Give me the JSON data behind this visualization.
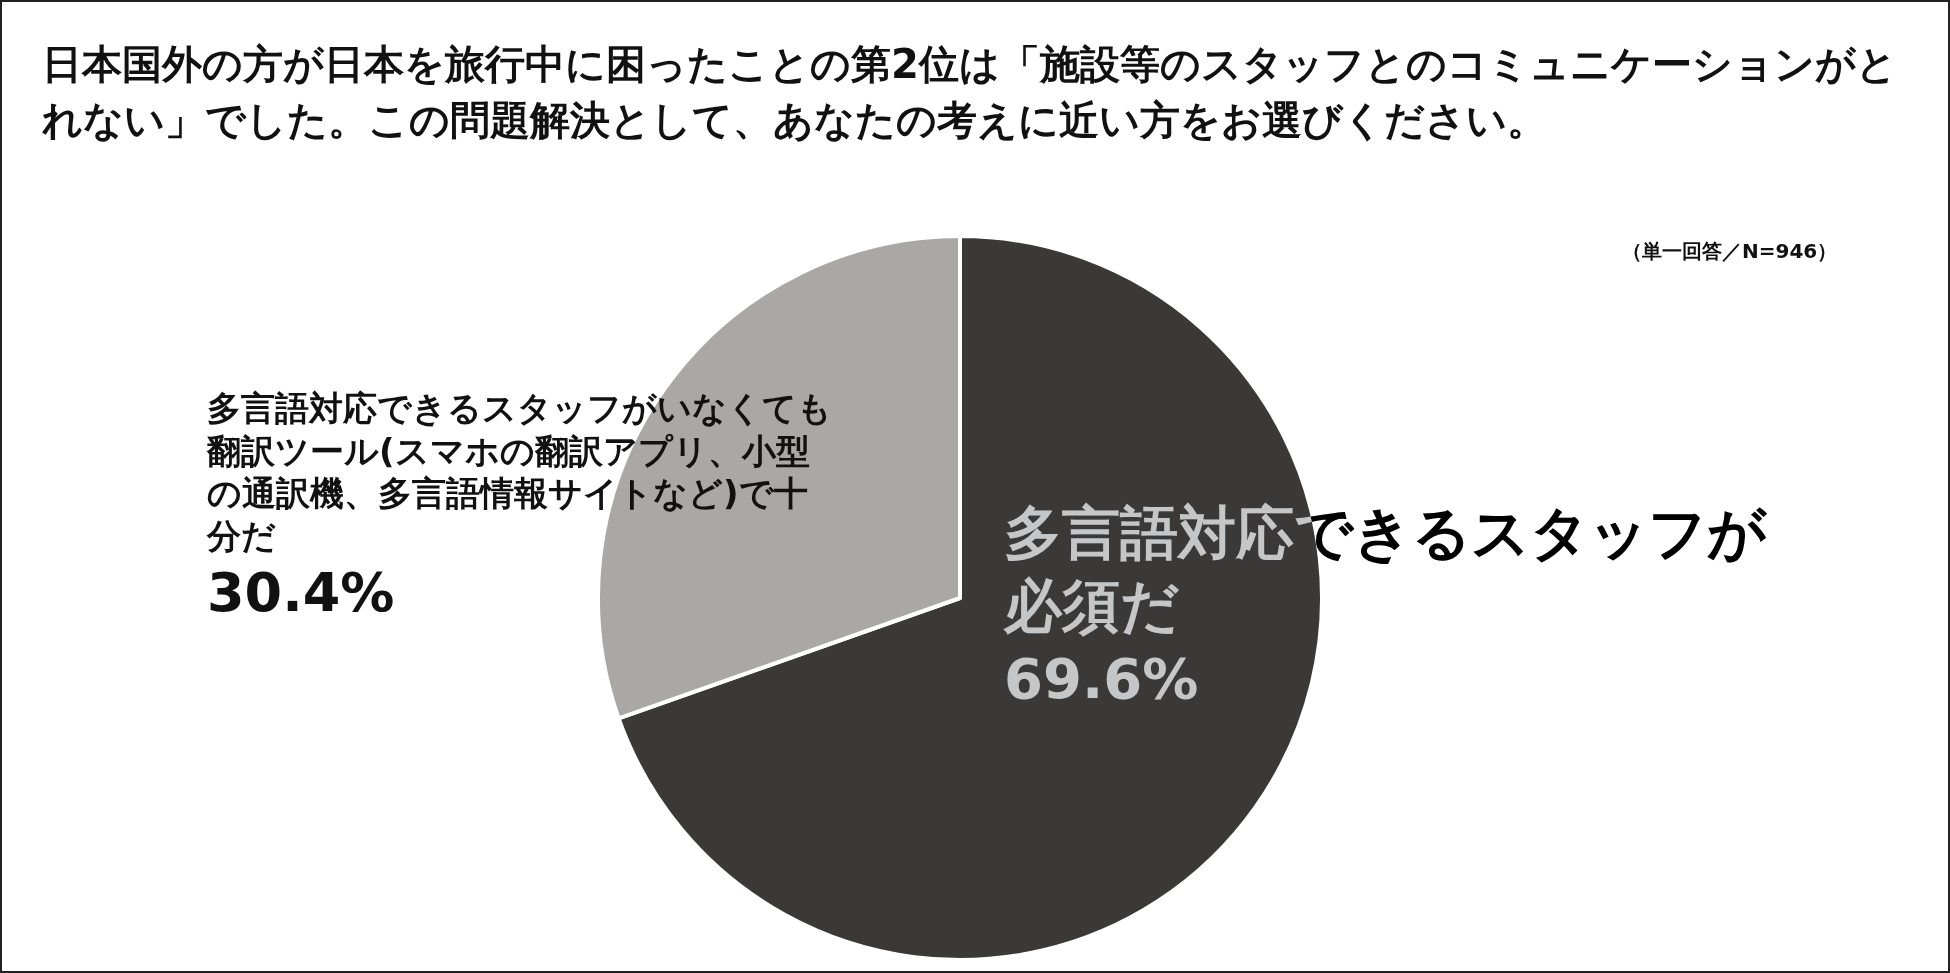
{
  "chart_data": {
    "type": "pie",
    "title": "日本国外の方が日本を旅行中に困ったことの第2位は「施設等のスタッフとのコミュニケーションがとれない」でした。この問題解決として、あなたの考えに近い方をお選びください。",
    "categories": [
      "多言語対応できるスタッフが必須だ",
      "多言語対応できるスタッフがいなくても翻訳ツール(スマホの翻訳アプリ、小型の通訳機、多言語情報サイトなど)で十分だ"
    ],
    "values": [
      69.6,
      30.4
    ],
    "colors": [
      "#3a3938",
      "#aaa7a7"
    ],
    "value_labels": [
      "69.6%",
      "30.4%"
    ],
    "annotations": [
      "（単一回答／N=946）"
    ]
  }
}
